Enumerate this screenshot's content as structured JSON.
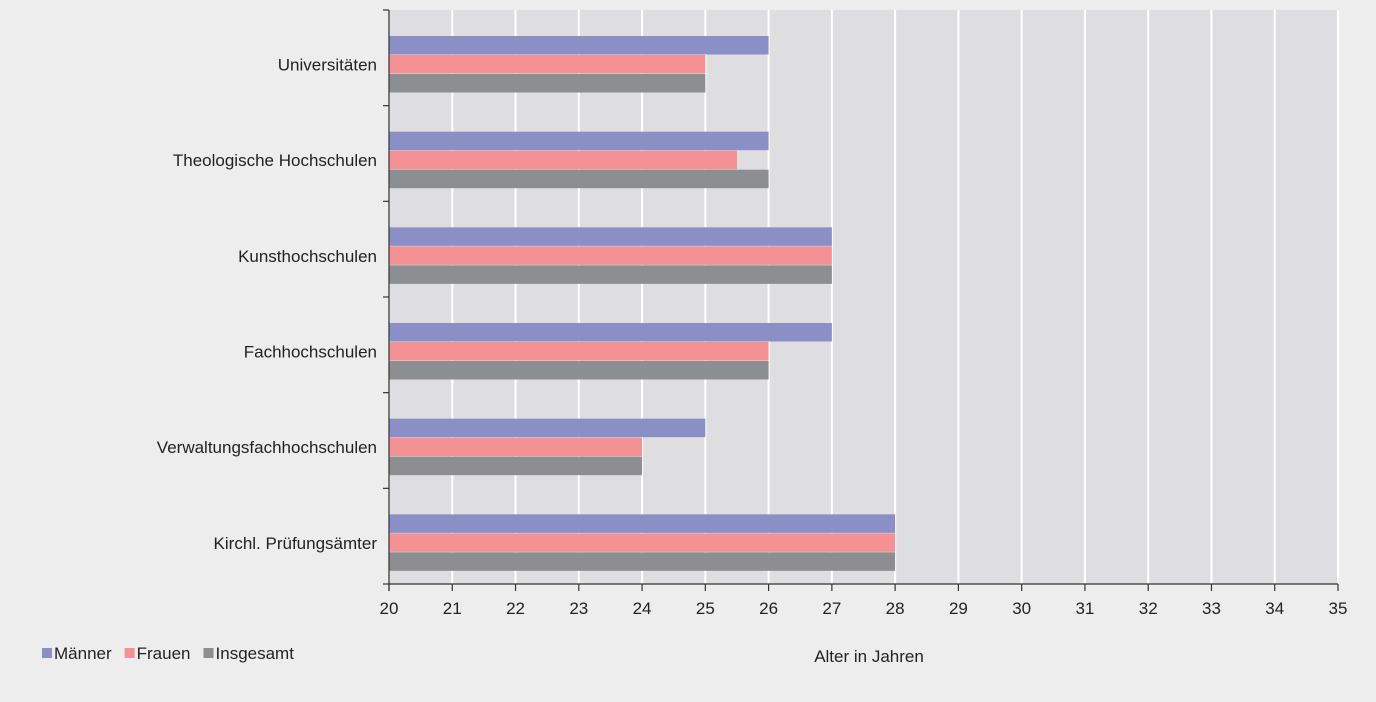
{
  "chart_data": {
    "type": "bar",
    "orientation": "horizontal",
    "categories": [
      "Universitäten",
      "Theologische Hochschulen",
      "Kunsthochschulen",
      "Fachhochschulen",
      "Verwaltungsfachhochschulen",
      "Kirchl. Prüfungsämter"
    ],
    "series": [
      {
        "name": "Männer",
        "color": "#8a8fc6",
        "values": [
          26,
          26,
          27,
          27,
          25,
          28
        ]
      },
      {
        "name": "Frauen",
        "color": "#f49195",
        "values": [
          25,
          25.5,
          27,
          26,
          24,
          28
        ]
      },
      {
        "name": "Insgesamt",
        "color": "#8d8e91",
        "values": [
          25,
          26,
          27,
          26,
          24,
          28
        ]
      }
    ],
    "xlabel": "Alter in Jahren",
    "xlim": [
      20,
      35
    ],
    "xticks": [
      "20",
      "21",
      "22",
      "23",
      "24",
      "25",
      "26",
      "27",
      "28",
      "29",
      "30",
      "31",
      "32",
      "33",
      "34",
      "35"
    ],
    "grid": "vertical",
    "legend_position": "bottom-left",
    "plot_background": "#dedee0",
    "grid_color": "#ffffff"
  }
}
